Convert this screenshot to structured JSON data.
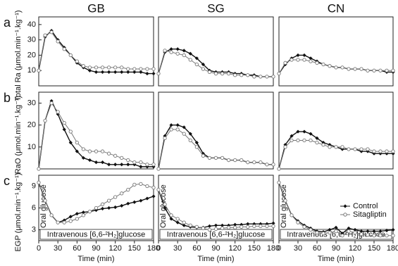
{
  "chart_data": [
    {
      "type": "line",
      "title": "GB",
      "panel_label": "a",
      "ylabel": "Total Ra (μmol.min⁻¹.kg⁻¹)",
      "xlim": [
        0,
        180
      ],
      "ylim": [
        0,
        45
      ],
      "yticks": [
        10,
        20,
        30,
        40
      ],
      "x": [
        0,
        10,
        20,
        30,
        40,
        50,
        60,
        70,
        80,
        90,
        100,
        110,
        120,
        130,
        140,
        150,
        160,
        170,
        180
      ],
      "series": [
        {
          "name": "Control",
          "color": "#111111",
          "values": [
            10,
            32,
            36,
            30,
            25,
            20,
            15,
            12,
            10,
            9,
            9,
            9,
            9,
            9,
            9,
            9,
            9,
            8,
            8
          ]
        },
        {
          "name": "Sitagliptin",
          "color": "#777777",
          "values": [
            10,
            33,
            35,
            29,
            24,
            20,
            16,
            13,
            12,
            12,
            12,
            12,
            12,
            12,
            11,
            11,
            11,
            11,
            11
          ]
        }
      ]
    },
    {
      "type": "line",
      "title": "SG",
      "xlim": [
        0,
        180
      ],
      "ylim": [
        0,
        45
      ],
      "x": [
        0,
        10,
        20,
        30,
        40,
        50,
        60,
        70,
        80,
        90,
        100,
        110,
        120,
        130,
        140,
        150,
        160,
        170,
        180
      ],
      "series": [
        {
          "name": "Control",
          "color": "#111111",
          "values": [
            8,
            22,
            24,
            24,
            23,
            21,
            18,
            14,
            10,
            9,
            9,
            9,
            8,
            8,
            7,
            7,
            6,
            6,
            6
          ]
        },
        {
          "name": "Sitagliptin",
          "color": "#777777",
          "values": [
            8,
            23,
            22,
            21,
            20,
            17,
            14,
            11,
            9,
            8,
            8,
            8,
            7,
            7,
            7,
            6,
            6,
            6,
            6
          ]
        }
      ]
    },
    {
      "type": "line",
      "title": "CN",
      "xlim": [
        0,
        180
      ],
      "ylim": [
        0,
        45
      ],
      "x": [
        0,
        10,
        20,
        30,
        40,
        50,
        60,
        70,
        80,
        90,
        100,
        110,
        120,
        130,
        140,
        150,
        160,
        170,
        180
      ],
      "series": [
        {
          "name": "Control",
          "color": "#111111",
          "values": [
            8,
            14,
            18,
            20,
            20,
            18,
            16,
            14,
            13,
            12,
            12,
            11,
            11,
            11,
            10,
            10,
            10,
            9,
            9
          ]
        },
        {
          "name": "Sitagliptin",
          "color": "#777777",
          "values": [
            8,
            15,
            17,
            17,
            17,
            16,
            15,
            14,
            13,
            12,
            12,
            11,
            11,
            11,
            10,
            10,
            10,
            10,
            10
          ]
        }
      ]
    },
    {
      "type": "line",
      "panel_label": "b",
      "ylabel": "RaO (μmol.min⁻¹.kg⁻¹)",
      "xlim": [
        0,
        180
      ],
      "ylim": [
        0,
        35
      ],
      "yticks": [
        10,
        20,
        30
      ],
      "x": [
        0,
        10,
        20,
        30,
        40,
        50,
        60,
        70,
        80,
        90,
        100,
        110,
        120,
        130,
        140,
        150,
        160,
        170,
        180
      ],
      "series": [
        {
          "name": "Control",
          "color": "#111111",
          "values": [
            0,
            22,
            31,
            25,
            18,
            12,
            8,
            5,
            4,
            3,
            3,
            2,
            2,
            2,
            2,
            2,
            1,
            1,
            1
          ]
        },
        {
          "name": "Sitagliptin",
          "color": "#777777",
          "values": [
            0,
            22,
            30,
            26,
            21,
            17,
            12,
            9,
            8,
            8,
            8,
            7,
            6,
            5,
            4,
            3,
            3,
            2,
            2
          ]
        }
      ]
    },
    {
      "type": "line",
      "xlim": [
        0,
        180
      ],
      "ylim": [
        0,
        35
      ],
      "x": [
        0,
        10,
        20,
        30,
        40,
        50,
        60,
        70,
        80,
        90,
        100,
        110,
        120,
        130,
        140,
        150,
        160,
        170,
        180
      ],
      "series": [
        {
          "name": "Control",
          "color": "#111111",
          "values": [
            0,
            15,
            20,
            20,
            19,
            16,
            12,
            7,
            5,
            5,
            5,
            4,
            4,
            4,
            3,
            3,
            3,
            2,
            2
          ]
        },
        {
          "name": "Sitagliptin",
          "color": "#777777",
          "values": [
            0,
            14,
            18,
            18,
            16,
            13,
            10,
            6,
            5,
            5,
            5,
            4,
            4,
            4,
            3,
            3,
            3,
            2,
            2
          ]
        }
      ]
    },
    {
      "type": "line",
      "xlim": [
        0,
        180
      ],
      "ylim": [
        0,
        35
      ],
      "x": [
        0,
        10,
        20,
        30,
        40,
        50,
        60,
        70,
        80,
        90,
        100,
        110,
        120,
        130,
        140,
        150,
        160,
        170,
        180
      ],
      "series": [
        {
          "name": "Control",
          "color": "#111111",
          "values": [
            0,
            11,
            15,
            17,
            17,
            16,
            14,
            12,
            11,
            10,
            9,
            9,
            9,
            8,
            8,
            7,
            7,
            7,
            7
          ]
        },
        {
          "name": "Sitagliptin",
          "color": "#777777",
          "values": [
            0,
            10,
            13,
            13,
            13,
            13,
            12,
            11,
            10,
            10,
            10,
            9,
            9,
            9,
            9,
            8,
            8,
            8,
            8
          ]
        }
      ]
    },
    {
      "type": "line",
      "panel_label": "c",
      "ylabel": "EGP (μmol.min⁻¹.kg⁻¹)",
      "xlabel": "Time (min)",
      "annotation": "Intravenous [6,6-²H₂]glucose",
      "side_note": "Oral glucose",
      "xlim": [
        0,
        180
      ],
      "ylim": [
        1.5,
        10.5
      ],
      "yticks": [
        3,
        6,
        9
      ],
      "xticks": [
        0,
        30,
        60,
        90,
        120,
        150,
        180
      ],
      "x": [
        0,
        10,
        20,
        30,
        40,
        50,
        60,
        70,
        80,
        90,
        100,
        110,
        120,
        130,
        140,
        150,
        160,
        170,
        180
      ],
      "series": [
        {
          "name": "Control",
          "color": "#111111",
          "values": [
            9.5,
            7,
            5,
            4,
            4.3,
            4.8,
            5.2,
            5.4,
            5.5,
            5.7,
            5.9,
            6,
            6.1,
            6.3,
            6.6,
            6.8,
            7,
            7.3,
            7.6
          ]
        },
        {
          "name": "Sitagliptin",
          "color": "#777777",
          "values": [
            9.5,
            7,
            5,
            4,
            4,
            4.2,
            4.5,
            5,
            5.5,
            6,
            6.5,
            7,
            7.5,
            8,
            8.5,
            9.2,
            9.3,
            9,
            8.8
          ]
        }
      ]
    },
    {
      "type": "line",
      "xlabel": "Time (min)",
      "annotation": "Intravenous [6,6-²H₂]glucose",
      "side_note": "Oral glucose",
      "xlim": [
        0,
        180
      ],
      "ylim": [
        1.5,
        10.5
      ],
      "xticks": [
        0,
        30,
        60,
        90,
        120,
        150,
        180
      ],
      "x": [
        0,
        10,
        20,
        30,
        40,
        50,
        60,
        70,
        80,
        90,
        100,
        110,
        120,
        130,
        140,
        150,
        160,
        170,
        180
      ],
      "series": [
        {
          "name": "Control",
          "color": "#111111",
          "values": [
            8.5,
            6,
            4.5,
            4,
            3.6,
            3.4,
            3.3,
            3.3,
            3.5,
            3.6,
            3.6,
            3.6,
            3.7,
            3.7,
            3.8,
            3.8,
            3.8,
            3.8,
            3.9
          ]
        },
        {
          "name": "Sitagliptin",
          "color": "#777777",
          "values": [
            8.5,
            6.5,
            5,
            4.5,
            4,
            3.6,
            3.4,
            3.2,
            3,
            3.1,
            3.2,
            3.3,
            3.3,
            3.4,
            3.4,
            3.5,
            3.5,
            3.5,
            3.5
          ]
        }
      ]
    },
    {
      "type": "line",
      "xlabel": "Time (min)",
      "annotation": "Intravenous [6,6-²H₂]glucose",
      "side_note": "Oral glucose",
      "legend": "upper right",
      "xlim": [
        0,
        180
      ],
      "ylim": [
        1.5,
        10.5
      ],
      "xticks": [
        0,
        30,
        60,
        90,
        120,
        150,
        180
      ],
      "x": [
        0,
        10,
        20,
        30,
        40,
        50,
        60,
        70,
        80,
        90,
        100,
        110,
        120,
        130,
        140,
        150,
        160,
        170,
        180
      ],
      "series": [
        {
          "name": "Control",
          "color": "#111111",
          "values": [
            9.5,
            7,
            5,
            4.2,
            3.6,
            3.2,
            2.8,
            2.7,
            3,
            3.3,
            2.5,
            3.2,
            3,
            2.8,
            2.8,
            2.8,
            2.8,
            2.9,
            3
          ]
        },
        {
          "name": "Sitagliptin",
          "color": "#777777",
          "values": [
            9.5,
            7,
            5,
            4,
            3.4,
            3,
            2.6,
            2.5,
            2.6,
            2.8,
            2.2,
            2.8,
            2.6,
            2.4,
            2.3,
            2.2,
            2.2,
            2.2,
            2.2
          ]
        }
      ]
    }
  ]
}
